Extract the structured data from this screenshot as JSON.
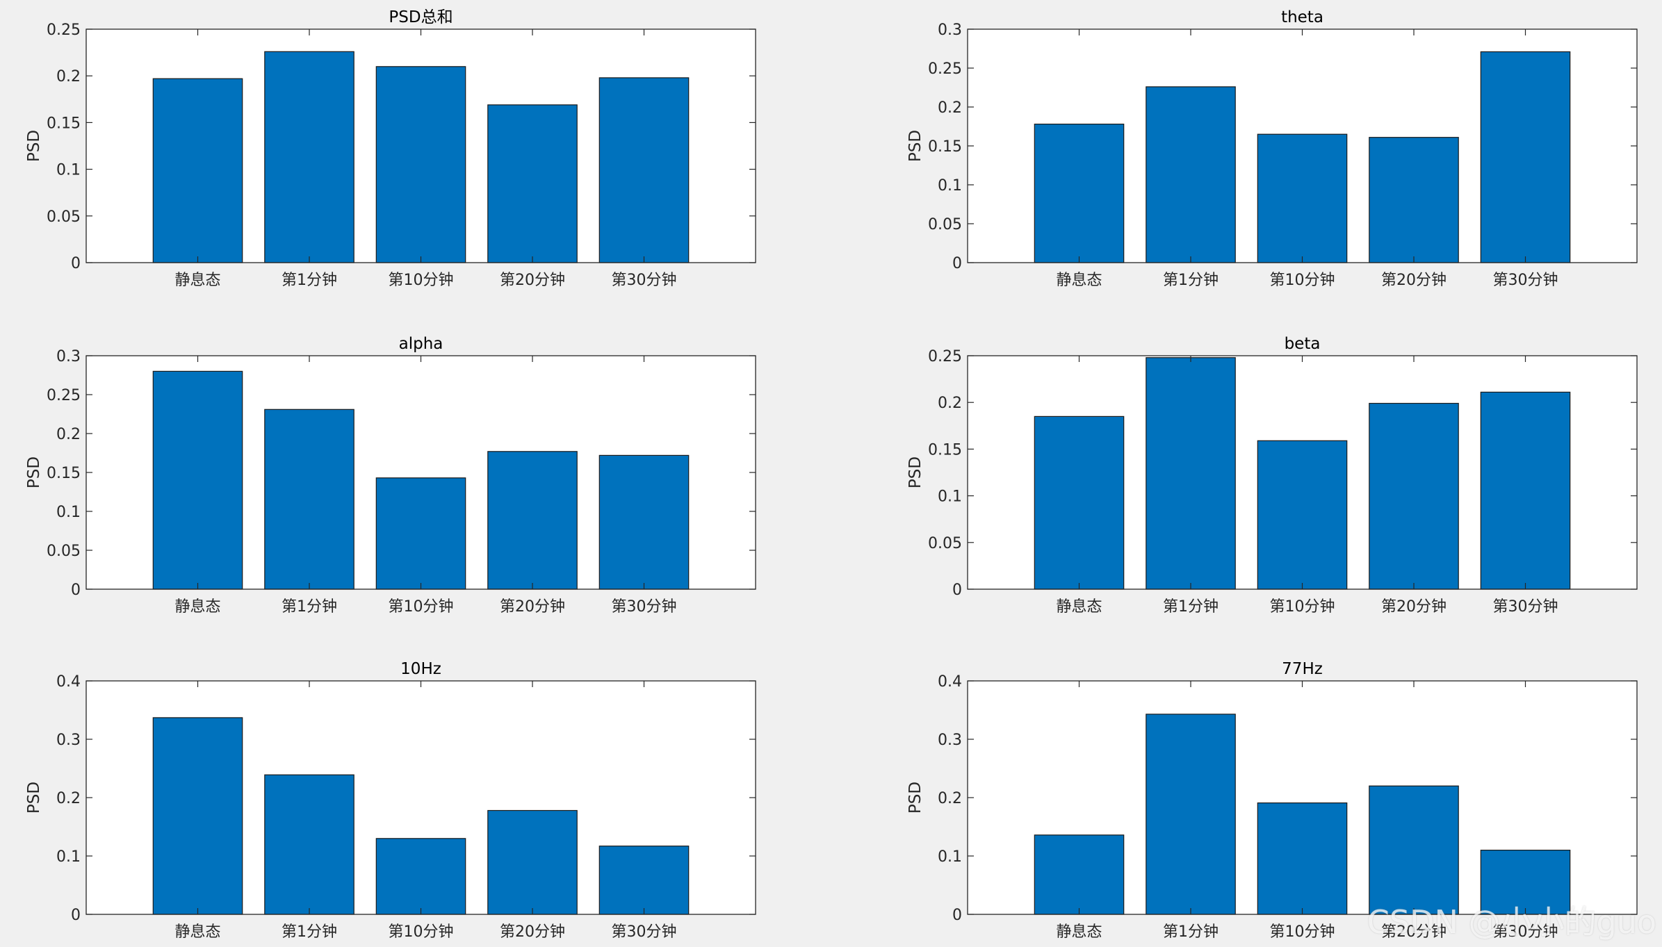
{
  "watermark": "CSDN @小小的guo",
  "colors": {
    "bar": "#0072bd",
    "axes_bg": "#ffffff",
    "figure_bg": "#f0f0f0"
  },
  "chart_data": [
    {
      "type": "bar",
      "title": "PSD总和",
      "ylabel": "PSD",
      "categories": [
        "静息态",
        "第1分钟",
        "第10分钟",
        "第20分钟",
        "第30分钟"
      ],
      "values": [
        0.197,
        0.226,
        0.21,
        0.169,
        0.198
      ],
      "ylim": [
        0,
        0.25
      ],
      "yticks": [
        "0",
        "0.05",
        "0.1",
        "0.15",
        "0.2",
        "0.25"
      ],
      "grid": false
    },
    {
      "type": "bar",
      "title": "theta",
      "ylabel": "PSD",
      "categories": [
        "静息态",
        "第1分钟",
        "第10分钟",
        "第20分钟",
        "第30分钟"
      ],
      "values": [
        0.178,
        0.226,
        0.165,
        0.161,
        0.271
      ],
      "ylim": [
        0,
        0.3
      ],
      "yticks": [
        "0",
        "0.05",
        "0.1",
        "0.15",
        "0.2",
        "0.25",
        "0.3"
      ],
      "grid": false
    },
    {
      "type": "bar",
      "title": "alpha",
      "ylabel": "PSD",
      "categories": [
        "静息态",
        "第1分钟",
        "第10分钟",
        "第20分钟",
        "第30分钟"
      ],
      "values": [
        0.28,
        0.231,
        0.143,
        0.177,
        0.172
      ],
      "ylim": [
        0,
        0.3
      ],
      "yticks": [
        "0",
        "0.05",
        "0.1",
        "0.15",
        "0.2",
        "0.25",
        "0.3"
      ],
      "grid": false
    },
    {
      "type": "bar",
      "title": "beta",
      "ylabel": "PSD",
      "categories": [
        "静息态",
        "第1分钟",
        "第10分钟",
        "第20分钟",
        "第30分钟"
      ],
      "values": [
        0.185,
        0.248,
        0.159,
        0.199,
        0.211
      ],
      "ylim": [
        0,
        0.25
      ],
      "yticks": [
        "0",
        "0.05",
        "0.1",
        "0.15",
        "0.2",
        "0.25"
      ],
      "grid": false
    },
    {
      "type": "bar",
      "title": "10Hz",
      "ylabel": "PSD",
      "categories": [
        "静息态",
        "第1分钟",
        "第10分钟",
        "第20分钟",
        "第30分钟"
      ],
      "values": [
        0.337,
        0.239,
        0.13,
        0.178,
        0.117
      ],
      "ylim": [
        0,
        0.4
      ],
      "yticks": [
        "0",
        "0.1",
        "0.2",
        "0.3",
        "0.4"
      ],
      "grid": false
    },
    {
      "type": "bar",
      "title": "77Hz",
      "ylabel": "PSD",
      "categories": [
        "静息态",
        "第1分钟",
        "第10分钟",
        "第20分钟",
        "第30分钟"
      ],
      "values": [
        0.136,
        0.343,
        0.191,
        0.22,
        0.11
      ],
      "ylim": [
        0,
        0.4
      ],
      "yticks": [
        "0",
        "0.1",
        "0.2",
        "0.3",
        "0.4"
      ],
      "grid": false
    }
  ]
}
